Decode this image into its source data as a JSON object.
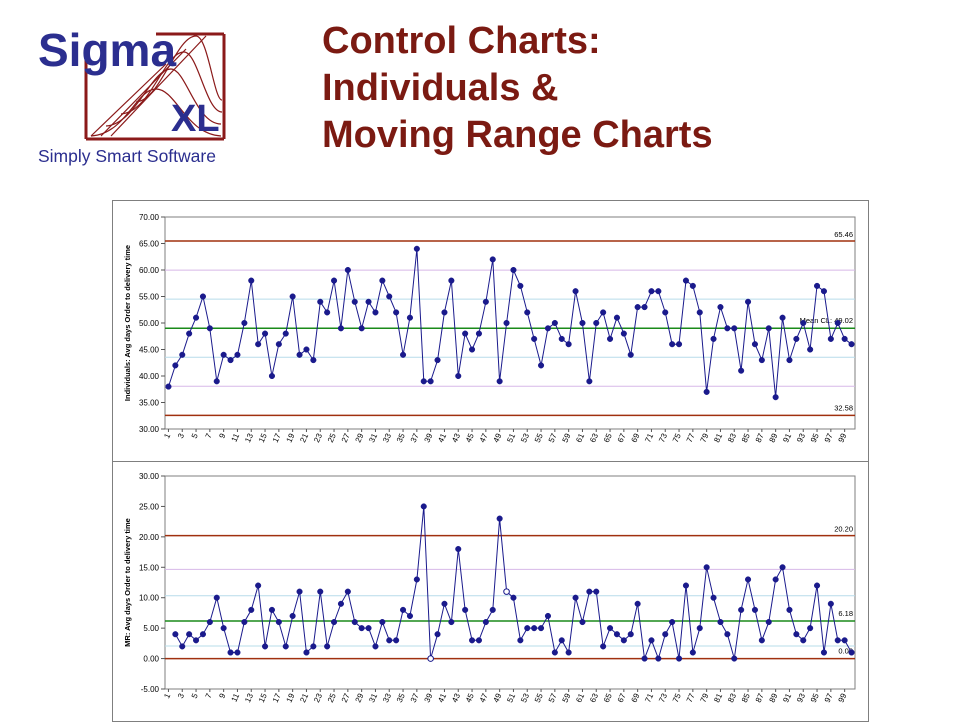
{
  "logo": {
    "line1": "Sigma",
    "line2": "XL",
    "tagline": "Simply Smart Software"
  },
  "title": {
    "line1": "Control Charts:",
    "line2": "Individuals &",
    "line3": "Moving Range Charts"
  },
  "colors": {
    "title": "#7b1a12",
    "logo_blue": "#2b2e8f",
    "logo_red": "#8b1a1a",
    "series": "#1a1a8c",
    "control_limit": "#a0300f",
    "center_line": "#1a8a1a",
    "zone_purple": "#d7b8e8",
    "zone_blue": "#b7dcea",
    "outlier_point": "#ffffff"
  },
  "chart_data": [
    {
      "type": "line",
      "ylabel": "Individuals: Avg days Order to delivery time",
      "ylim": [
        30,
        70
      ],
      "yticks": [
        "30.00",
        "35.00",
        "40.00",
        "45.00",
        "50.00",
        "55.00",
        "60.00",
        "65.00",
        "70.00"
      ],
      "xticks": [
        "1",
        "3",
        "5",
        "7",
        "9",
        "11",
        "13",
        "15",
        "17",
        "19",
        "21",
        "23",
        "25",
        "27",
        "29",
        "31",
        "33",
        "35",
        "37",
        "39",
        "41",
        "43",
        "45",
        "47",
        "49",
        "51",
        "53",
        "55",
        "57",
        "59",
        "61",
        "63",
        "65",
        "67",
        "69",
        "71",
        "73",
        "75",
        "77",
        "79",
        "81",
        "83",
        "85",
        "87",
        "89",
        "91",
        "93",
        "95",
        "97",
        "99"
      ],
      "x": [
        1,
        2,
        3,
        4,
        5,
        6,
        7,
        8,
        9,
        10,
        11,
        12,
        13,
        14,
        15,
        16,
        17,
        18,
        19,
        20,
        21,
        22,
        23,
        24,
        25,
        26,
        27,
        28,
        29,
        30,
        31,
        32,
        33,
        34,
        35,
        36,
        37,
        38,
        39,
        40,
        41,
        42,
        43,
        44,
        45,
        46,
        47,
        48,
        49,
        50,
        51,
        52,
        53,
        54,
        55,
        56,
        57,
        58,
        59,
        60,
        61,
        62,
        63,
        64,
        65,
        66,
        67,
        68,
        69,
        70,
        71,
        72,
        73,
        74,
        75,
        76,
        77,
        78,
        79,
        80,
        81,
        82,
        83,
        84,
        85,
        86,
        87,
        88,
        89,
        90,
        91,
        92,
        93,
        94,
        95,
        96,
        97,
        98,
        99,
        100
      ],
      "values": [
        38,
        42,
        44,
        48,
        51,
        55,
        49,
        39,
        44,
        43,
        44,
        50,
        58,
        46,
        48,
        40,
        46,
        48,
        55,
        44,
        45,
        43,
        54,
        52,
        58,
        49,
        60,
        54,
        49,
        54,
        52,
        58,
        55,
        52,
        44,
        51,
        64,
        39,
        39,
        43,
        52,
        58,
        40,
        48,
        45,
        48,
        54,
        62,
        39,
        50,
        60,
        57,
        52,
        47,
        42,
        49,
        50,
        47,
        46,
        56,
        50,
        39,
        50,
        52,
        47,
        51,
        48,
        44,
        53,
        53,
        56,
        56,
        52,
        46,
        46,
        58,
        57,
        52,
        37,
        47,
        53,
        49,
        49,
        41,
        54,
        46,
        43,
        49,
        36,
        51,
        43,
        47,
        50,
        45,
        57,
        56,
        47,
        50,
        47,
        46
      ],
      "ucl": 65.46,
      "center": 49.02,
      "lcl": 32.58,
      "zones": [
        38.06,
        43.54,
        54.5,
        59.98
      ],
      "labels": {
        "ucl": "65.46",
        "center": "Mean CL: 49.02",
        "lcl": "32.58"
      }
    },
    {
      "type": "line",
      "ylabel": "MR: Avg days Order to delivery time",
      "ylim": [
        -5,
        30
      ],
      "yticks": [
        "-5.00",
        "0.00",
        "5.00",
        "10.00",
        "15.00",
        "20.00",
        "25.00",
        "30.00"
      ],
      "xticks": [
        "1",
        "3",
        "5",
        "7",
        "9",
        "11",
        "13",
        "15",
        "17",
        "19",
        "21",
        "23",
        "25",
        "27",
        "29",
        "31",
        "33",
        "35",
        "37",
        "39",
        "41",
        "43",
        "45",
        "47",
        "49",
        "51",
        "53",
        "55",
        "57",
        "59",
        "61",
        "63",
        "65",
        "67",
        "69",
        "71",
        "73",
        "75",
        "77",
        "79",
        "81",
        "83",
        "85",
        "87",
        "89",
        "91",
        "93",
        "95",
        "97",
        "99"
      ],
      "x": [
        2,
        3,
        4,
        5,
        6,
        7,
        8,
        9,
        10,
        11,
        12,
        13,
        14,
        15,
        16,
        17,
        18,
        19,
        20,
        21,
        22,
        23,
        24,
        25,
        26,
        27,
        28,
        29,
        30,
        31,
        32,
        33,
        34,
        35,
        36,
        37,
        38,
        39,
        40,
        41,
        42,
        43,
        44,
        45,
        46,
        47,
        48,
        49,
        50,
        51,
        52,
        53,
        54,
        55,
        56,
        57,
        58,
        59,
        60,
        61,
        62,
        63,
        64,
        65,
        66,
        67,
        68,
        69,
        70,
        71,
        72,
        73,
        74,
        75,
        76,
        77,
        78,
        79,
        80,
        81,
        82,
        83,
        84,
        85,
        86,
        87,
        88,
        89,
        90,
        91,
        92,
        93,
        94,
        95,
        96,
        97,
        98,
        99,
        100
      ],
      "values": [
        4,
        2,
        4,
        3,
        4,
        6,
        10,
        5,
        1,
        1,
        6,
        8,
        12,
        2,
        8,
        6,
        2,
        7,
        11,
        1,
        2,
        11,
        2,
        6,
        9,
        11,
        6,
        5,
        5,
        2,
        6,
        3,
        3,
        8,
        7,
        13,
        25,
        0,
        4,
        9,
        6,
        18,
        8,
        3,
        3,
        6,
        8,
        23,
        11,
        10,
        3,
        5,
        5,
        5,
        7,
        1,
        3,
        1,
        10,
        6,
        11,
        11,
        2,
        5,
        4,
        3,
        4,
        9,
        0,
        3,
        0,
        4,
        6,
        0,
        12,
        1,
        5,
        15,
        10,
        6,
        4,
        0,
        8,
        13,
        8,
        3,
        6,
        13,
        15,
        8,
        4,
        3,
        5,
        12,
        1,
        9,
        3,
        3,
        1
      ],
      "ucl": 20.2,
      "center": 6.18,
      "lcl": 0.0,
      "zones": [
        2.06,
        10.32,
        14.66
      ],
      "outliers_x": [
        39,
        50
      ],
      "labels": {
        "ucl": "20.20",
        "center": "6.18",
        "lcl": "0.00"
      }
    }
  ]
}
